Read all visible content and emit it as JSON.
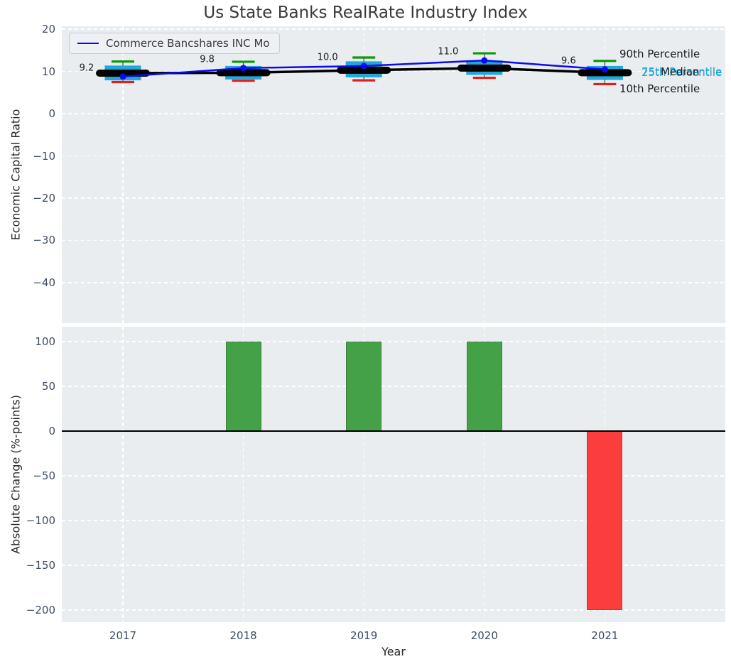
{
  "title": "Us State Banks RealRate Industry Index",
  "legend": {
    "label": "Commerce Bancshares INC Mo"
  },
  "right_labels": {
    "p90": "90th Percentile",
    "p75": "75th Percentile",
    "median": "Median",
    "p25": "25th Percentile",
    "p10": "10th Percentile"
  },
  "top_axis": {
    "ylabel": "Economic Capital Ratio"
  },
  "bottom_axis": {
    "ylabel": "Absolute Change (%-points)",
    "xlabel": "Year"
  },
  "chart_data": [
    {
      "type": "boxplot+line",
      "title": "Us State Banks RealRate Industry Index",
      "ylabel": "Economic Capital Ratio",
      "categories": [
        2017,
        2018,
        2019,
        2020,
        2021
      ],
      "ylim": [
        -49.6,
        20.7
      ],
      "yticks": [
        20,
        10,
        0,
        -10,
        -20,
        -30,
        -40
      ],
      "grid": true,
      "legend_position": "upper left",
      "series": [
        {
          "name": "Commerce Bancshares INC Mo",
          "type": "line",
          "color_key": "company",
          "values": [
            9.2,
            9.8,
            10.0,
            11.0,
            9.6
          ],
          "plot_values": [
            8.8,
            10.8,
            11.3,
            12.6,
            10.5
          ],
          "point_labels": [
            "9.2",
            "9.8",
            "10.0",
            "11.0",
            "9.6"
          ]
        },
        {
          "name": "Median",
          "type": "line",
          "color_key": "median",
          "values": [
            9.6,
            9.7,
            10.3,
            10.8,
            9.7
          ]
        }
      ],
      "boxplot": {
        "q3": [
          11.4,
          11.3,
          12.4,
          12.6,
          11.3
        ],
        "q1": [
          7.9,
          8.1,
          8.6,
          9.2,
          8.0
        ],
        "p90": [
          12.35,
          12.3,
          13.3,
          14.3,
          12.5
        ],
        "p10": [
          7.5,
          7.8,
          7.9,
          8.5,
          7.0
        ]
      }
    },
    {
      "type": "bar",
      "ylabel": "Absolute Change (%-points)",
      "xlabel": "Year",
      "categories": [
        2017,
        2018,
        2019,
        2020,
        2021
      ],
      "values": [
        null,
        100,
        100,
        100,
        -200
      ],
      "bar_colors": [
        "none",
        "positive",
        "positive",
        "positive",
        "negative"
      ],
      "ylim": [
        -213.5,
        116.7
      ],
      "yticks": [
        100,
        50,
        0,
        -50,
        -100,
        -150,
        -200
      ],
      "zero_line": true,
      "grid": true
    }
  ],
  "colors": {
    "axes_background": "#e9edf0",
    "grid": "#ffffff",
    "company": "#0a0af0",
    "median": "#000000",
    "box_fill": "#22a7db",
    "cap_top": "#0a990a",
    "cap_bottom": "#e51c1c",
    "positive": "#44a147",
    "negative": "#fb3d3d",
    "tick_label": "#3d4c63",
    "text": "#262626",
    "title": "#3a3a3a"
  }
}
